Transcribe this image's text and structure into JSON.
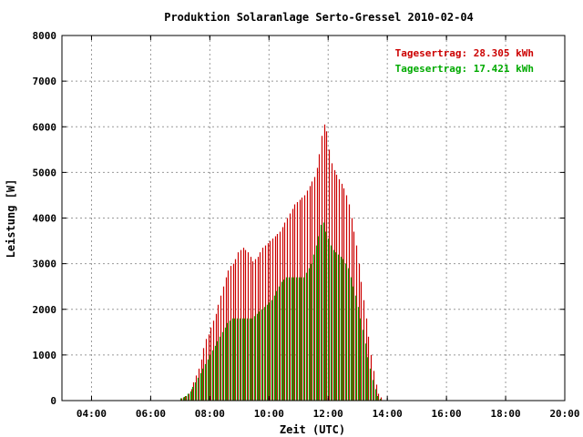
{
  "chart_data": {
    "type": "bar",
    "title": "Produktion Solaranlage Serto-Gressel 2010-02-04",
    "xlabel": "Zeit (UTC)",
    "ylabel": "Leistung [W]",
    "xlim": [
      3.0,
      20.0
    ],
    "ylim": [
      0,
      8000
    ],
    "x_ticks": [
      "04:00",
      "06:00",
      "08:00",
      "10:00",
      "12:00",
      "14:00",
      "16:00",
      "18:00",
      "20:00"
    ],
    "x_tick_values": [
      4,
      6,
      8,
      10,
      12,
      14,
      16,
      18,
      20
    ],
    "y_ticks": [
      "0",
      "1000",
      "2000",
      "3000",
      "4000",
      "5000",
      "6000",
      "7000",
      "8000"
    ],
    "y_tick_values": [
      0,
      1000,
      2000,
      3000,
      4000,
      5000,
      6000,
      7000,
      8000
    ],
    "grid": true,
    "legend_position": "top-right",
    "bar_interval_hours": 0.0833,
    "series": [
      {
        "label": "Tagesertrag: 28.305 kWh",
        "color": "#cc0000",
        "x_start": 7.0,
        "values": [
          50,
          80,
          100,
          150,
          250,
          400,
          550,
          700,
          900,
          1150,
          1350,
          1450,
          1600,
          1750,
          1900,
          2100,
          2300,
          2500,
          2700,
          2850,
          2950,
          3000,
          3100,
          3250,
          3300,
          3350,
          3300,
          3250,
          3150,
          3050,
          3100,
          3150,
          3250,
          3350,
          3400,
          3450,
          3500,
          3550,
          3600,
          3650,
          3700,
          3800,
          3900,
          4000,
          4100,
          4200,
          4300,
          4350,
          4400,
          4450,
          4500,
          4600,
          4700,
          4800,
          4900,
          5100,
          5400,
          5800,
          6050,
          5900,
          5500,
          5200,
          5050,
          4950,
          4850,
          4750,
          4650,
          4500,
          4300,
          4000,
          3700,
          3400,
          3000,
          2600,
          2200,
          1800,
          1400,
          1000,
          650,
          350,
          150,
          70
        ]
      },
      {
        "label": "Tagesertrag: 17.421 kWh",
        "color": "#00aa00",
        "x_start": 7.0,
        "values": [
          50,
          70,
          100,
          150,
          200,
          300,
          400,
          500,
          600,
          700,
          800,
          900,
          1000,
          1100,
          1200,
          1300,
          1400,
          1500,
          1600,
          1700,
          1750,
          1800,
          1800,
          1800,
          1800,
          1800,
          1800,
          1800,
          1800,
          1800,
          1850,
          1900,
          1950,
          2000,
          2050,
          2100,
          2150,
          2200,
          2300,
          2400,
          2500,
          2600,
          2650,
          2700,
          2700,
          2700,
          2700,
          2700,
          2700,
          2700,
          2700,
          2800,
          2900,
          3000,
          3200,
          3400,
          3600,
          3850,
          3900,
          3700,
          3550,
          3400,
          3300,
          3250,
          3200,
          3150,
          3100,
          3000,
          2900,
          2700,
          2500,
          2300,
          2050,
          1800,
          1550,
          1250,
          950,
          700,
          450,
          250,
          100,
          40
        ]
      }
    ]
  }
}
